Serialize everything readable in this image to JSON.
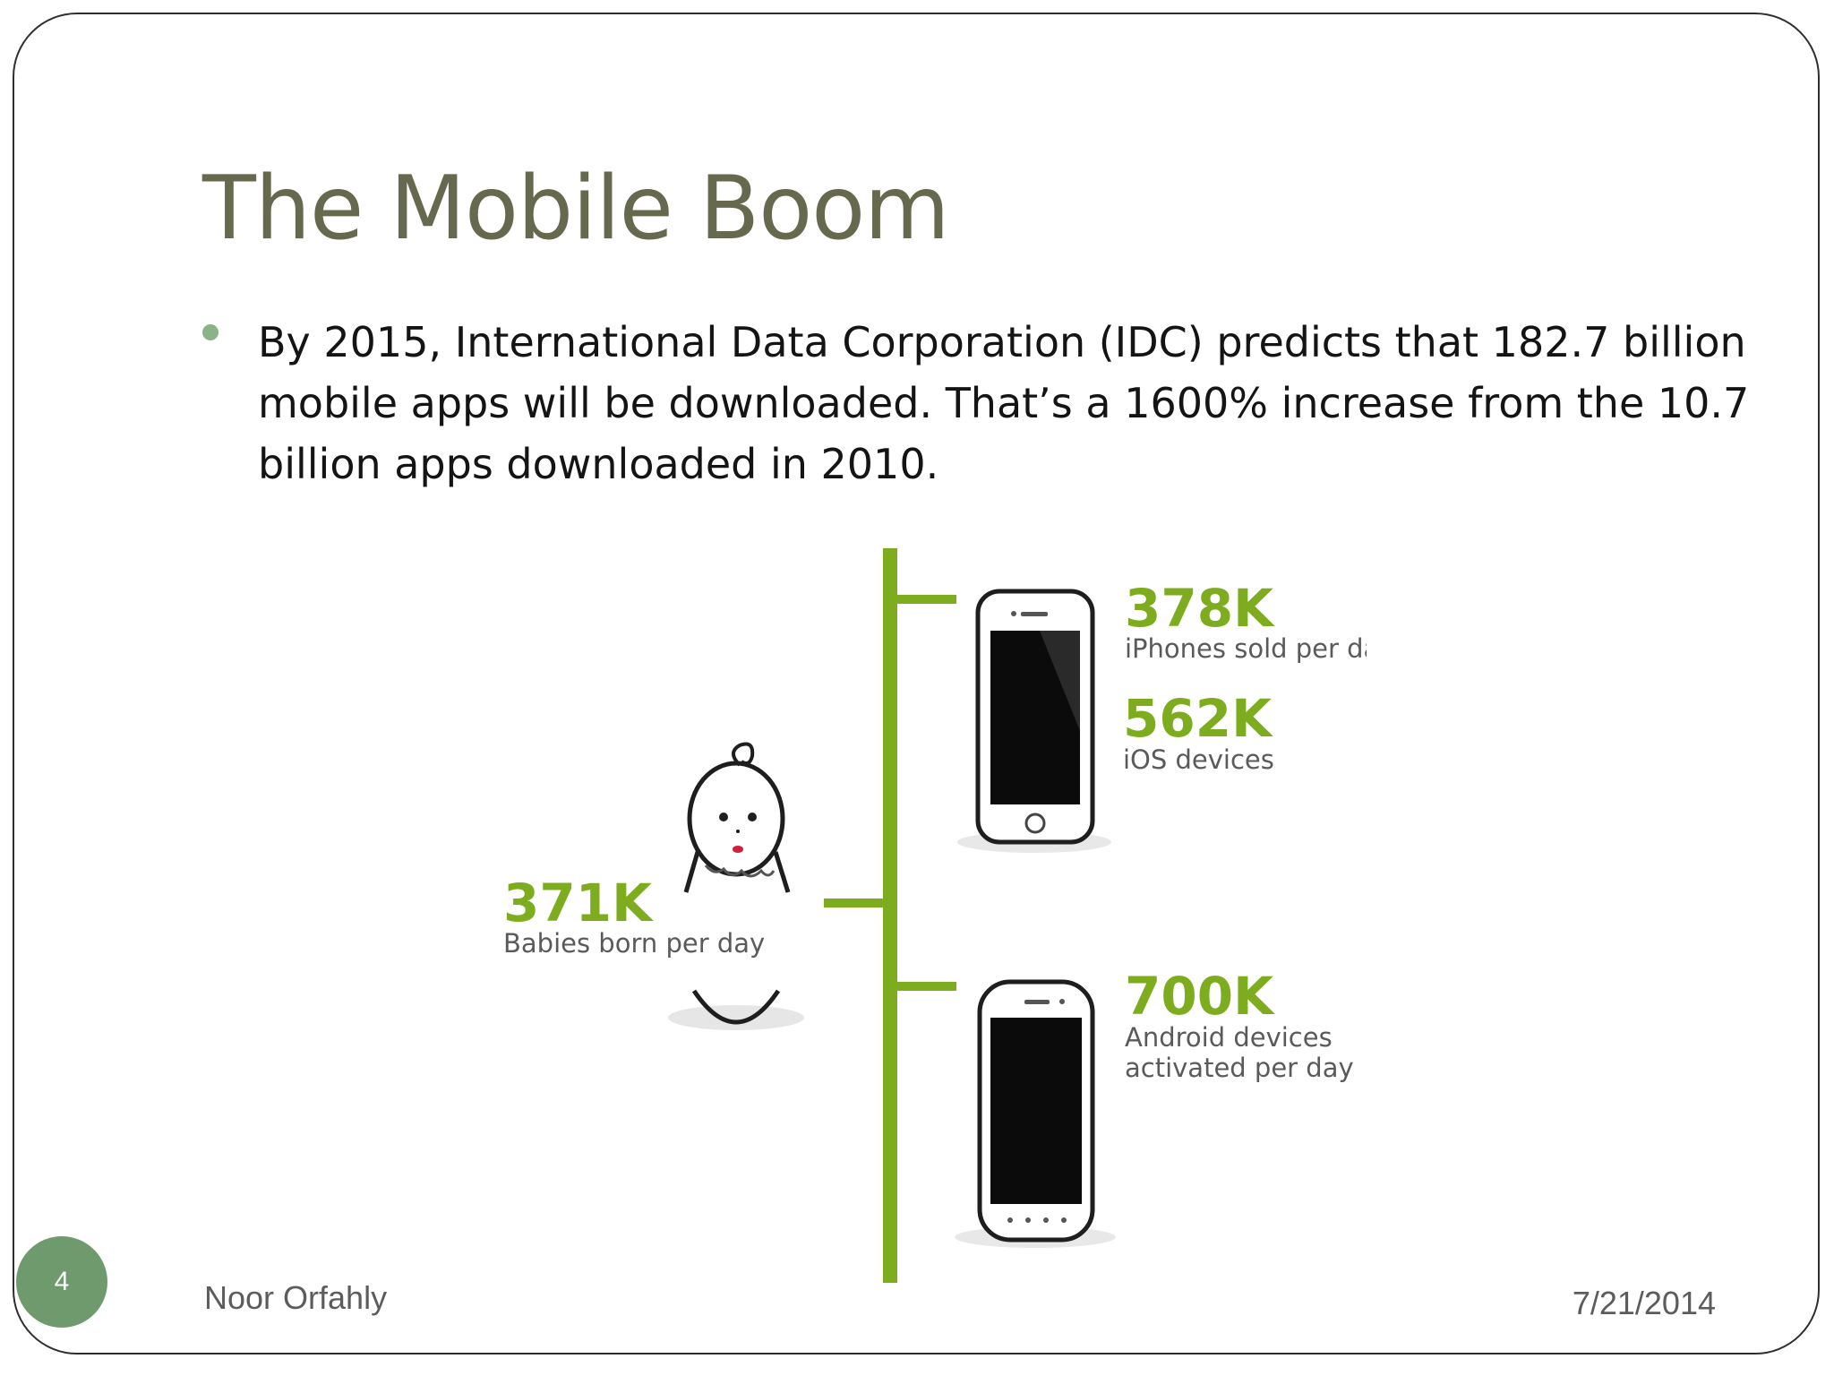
{
  "slide": {
    "title": "The Mobile Boom",
    "bullet": "By 2015, International Data Corporation (IDC) predicts that 182.7 billion mobile apps will be downloaded. That’s a 1600% increase from the 10.7 billion apps downloaded in 2010."
  },
  "infographic": {
    "iphones": {
      "value": "378K",
      "label": "iPhones sold per day"
    },
    "ios": {
      "value": "562K",
      "label": "iOS devices"
    },
    "babies": {
      "value": "371K",
      "label": "Babies born per day"
    },
    "android": {
      "value": "700K",
      "label_line1": "Android devices",
      "label_line2": "activated per day"
    }
  },
  "footer": {
    "page_number": "4",
    "author": "Noor Orfahly",
    "date": "7/21/2014"
  },
  "colors": {
    "title": "#67694e",
    "accent_green": "#7dad1f",
    "badge": "#6f9a6e",
    "bullet": "#8cb28a"
  }
}
